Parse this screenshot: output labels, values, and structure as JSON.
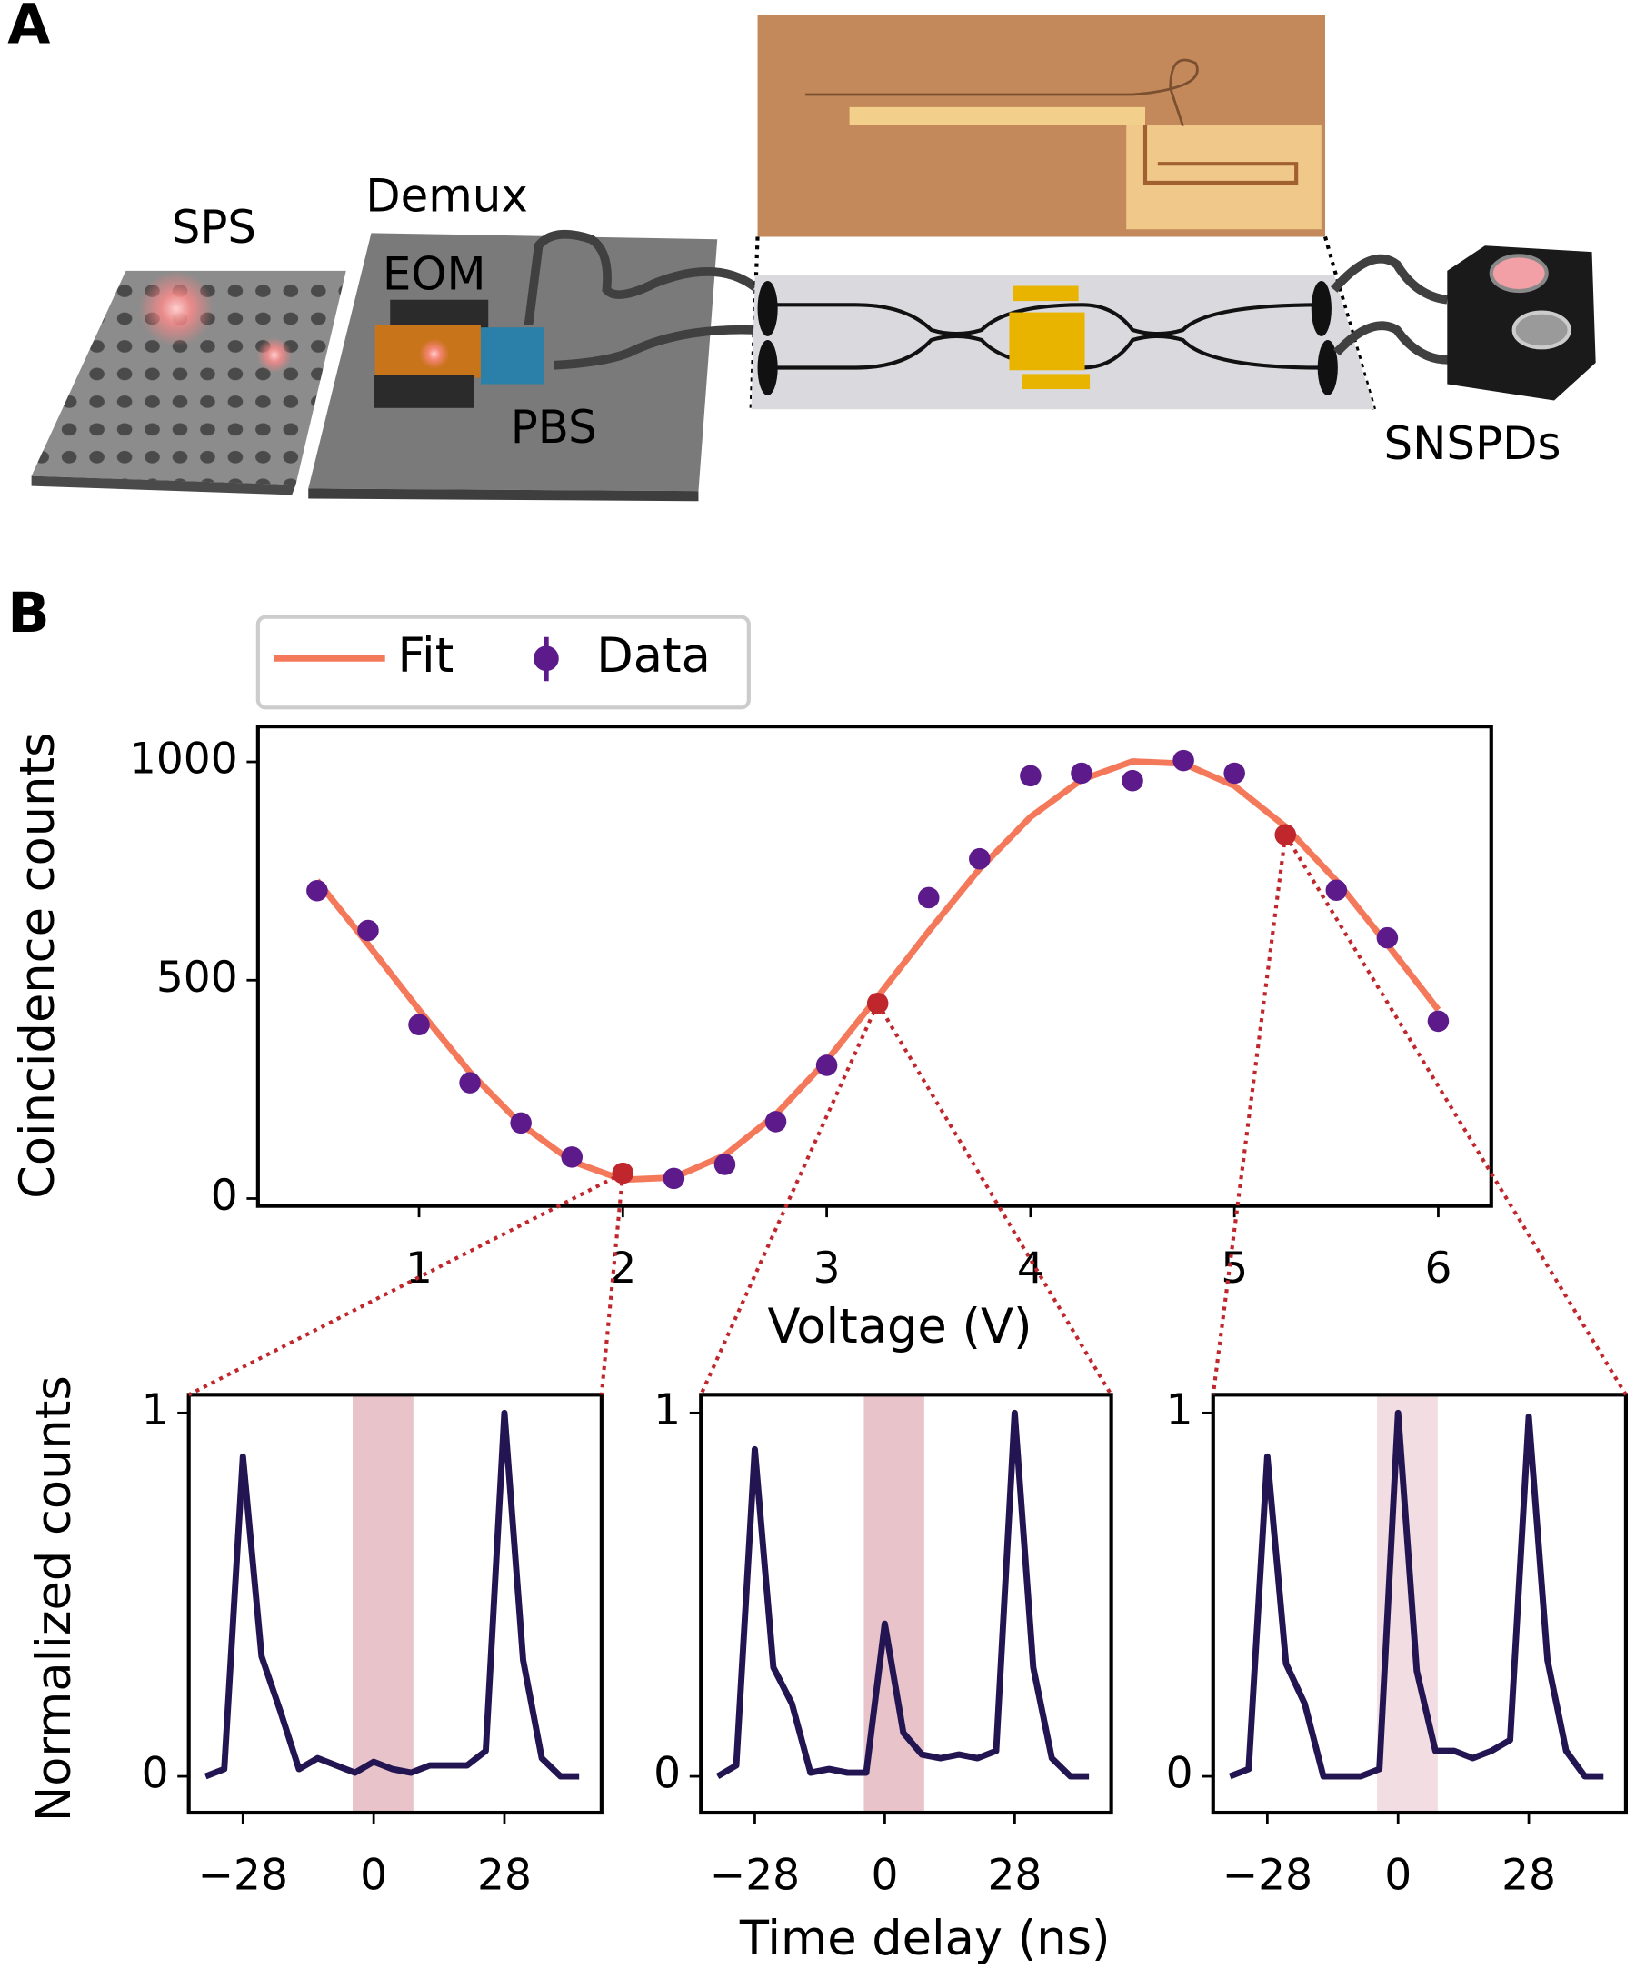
{
  "panel_labels": [
    "A",
    "B"
  ],
  "illustration": {
    "labels": [
      "SPS",
      "Demux",
      "EOM",
      "PBS",
      "SNSPDs"
    ]
  },
  "chart_data": [
    {
      "type": "scatter",
      "xlabel": "Voltage (V)",
      "ylabel": "Coincidence counts",
      "x": [
        0.5,
        0.75,
        1.0,
        1.25,
        1.5,
        1.75,
        2.0,
        2.25,
        2.5,
        2.75,
        3.0,
        3.25,
        3.5,
        3.75,
        4.0,
        4.25,
        4.5,
        4.75,
        5.0,
        5.25,
        5.5,
        5.75,
        6.0
      ],
      "series": [
        {
          "name": "Fit",
          "type": "line",
          "color": "#f4795b",
          "values": [
            728,
            582,
            432,
            289,
            170,
            85,
            43,
            48,
            99,
            192,
            316,
            462,
            612,
            755,
            874,
            959,
            1001,
            996,
            945,
            852,
            728,
            582,
            432
          ]
        },
        {
          "name": "Data",
          "type": "scatter",
          "color": "#5c1a8b",
          "values": [
            705,
            614,
            398,
            265,
            173,
            95,
            58,
            46,
            78,
            176,
            305,
            447,
            689,
            778,
            968,
            974,
            957,
            1003,
            974,
            833,
            706,
            597,
            406
          ]
        }
      ],
      "highlight": {
        "indices": [
          6,
          11,
          19
        ],
        "color": "#c0272d"
      },
      "xlim": [
        0.21,
        6.26
      ],
      "ylim": [
        -17,
        1081
      ],
      "xticks": [
        1,
        2,
        3,
        4,
        5,
        6
      ],
      "yticks": [
        0,
        500,
        1000
      ]
    },
    {
      "type": "line",
      "ylabel": "Normalized counts",
      "x": [
        -36,
        -32,
        -28,
        -24,
        -20,
        -16,
        -12,
        -8,
        -4,
        0,
        4,
        8,
        12,
        16,
        20,
        24,
        28,
        32,
        36,
        40,
        44
      ],
      "series": [
        {
          "color": "#231552",
          "values": [
            0.0,
            0.02,
            0.88,
            0.33,
            0.18,
            0.02,
            0.05,
            0.03,
            0.01,
            0.04,
            0.02,
            0.01,
            0.03,
            0.03,
            0.03,
            0.07,
            1.0,
            0.32,
            0.05,
            0.0,
            0.0
          ]
        }
      ],
      "shade": [
        -4.5,
        8.5
      ],
      "shade_color": "#e8c3ca",
      "xlim": [
        -39.6,
        48.8
      ],
      "ylim": [
        -0.1,
        1.05
      ],
      "xticks": [
        {
          "value": -28,
          "label": "−28"
        },
        0,
        28
      ],
      "yticks": [
        0,
        1
      ]
    },
    {
      "type": "line",
      "xlabel": "Time delay (ns)",
      "x": [
        -36,
        -32,
        -28,
        -24,
        -20,
        -16,
        -12,
        -8,
        -4,
        0,
        4,
        8,
        12,
        16,
        20,
        24,
        28,
        32,
        36,
        40,
        44
      ],
      "series": [
        {
          "color": "#231552",
          "values": [
            0.0,
            0.03,
            0.9,
            0.3,
            0.2,
            0.01,
            0.02,
            0.01,
            0.01,
            0.42,
            0.12,
            0.06,
            0.05,
            0.06,
            0.05,
            0.07,
            1.0,
            0.3,
            0.05,
            0.0,
            0.0
          ]
        }
      ],
      "shade": [
        -4.5,
        8.5
      ],
      "shade_color": "#e8c3ca",
      "xlim": [
        -39.6,
        48.8
      ],
      "ylim": [
        -0.1,
        1.05
      ],
      "xticks": [
        {
          "value": -28,
          "label": "−28"
        },
        0,
        28
      ],
      "yticks": [
        0,
        1
      ]
    },
    {
      "type": "line",
      "x": [
        -36,
        -32,
        -28,
        -24,
        -20,
        -16,
        -12,
        -8,
        -4,
        0,
        4,
        8,
        12,
        16,
        20,
        24,
        28,
        32,
        36,
        40,
        44
      ],
      "series": [
        {
          "color": "#231552",
          "values": [
            0.0,
            0.02,
            0.88,
            0.31,
            0.2,
            0.0,
            0.0,
            0.0,
            0.02,
            1.0,
            0.29,
            0.07,
            0.07,
            0.05,
            0.07,
            0.1,
            0.99,
            0.32,
            0.07,
            0.0,
            0.0
          ]
        }
      ],
      "shade": [
        -4.5,
        8.5
      ],
      "shade_color": "#f1dde2",
      "xlim": [
        -39.6,
        48.8
      ],
      "ylim": [
        -0.1,
        1.05
      ],
      "xticks": [
        {
          "value": -28,
          "label": "−28"
        },
        0,
        28
      ],
      "yticks": [
        0,
        1
      ]
    }
  ]
}
